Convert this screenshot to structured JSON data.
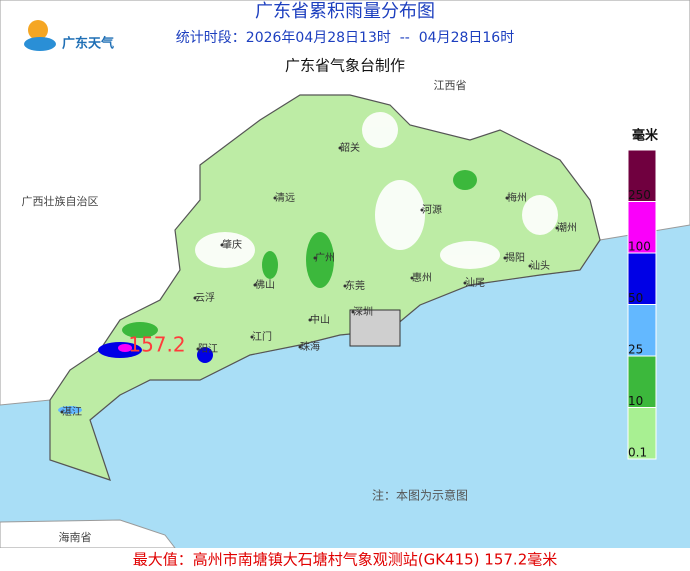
{
  "header": {
    "title": "广东省累积雨量分布图",
    "logo": "广东天气",
    "period": "统计时段：2026年04月28日13时  --  04月28日16时",
    "producer": "广东省气象台制作"
  },
  "legend": {
    "unit": "毫米",
    "items": [
      {
        "label": "250",
        "color": "#70003f"
      },
      {
        "label": "100",
        "color": "#fa00fa"
      },
      {
        "label": "50",
        "color": "#0000e6"
      },
      {
        "label": "25",
        "color": "#63b8ff"
      },
      {
        "label": "10",
        "color": "#3cb83c"
      },
      {
        "label": "0.1",
        "color": "#a8f092"
      }
    ]
  },
  "regions": [
    "江西省",
    "广西壮族自治区",
    "海南省"
  ],
  "cities": [
    "韶关",
    "清远",
    "河源",
    "梅州",
    "潮州",
    "揭阳",
    "汕头",
    "汕尾",
    "惠州",
    "广州",
    "佛山",
    "肇庆",
    "云浮",
    "东莞",
    "深圳",
    "中山",
    "珠海",
    "江门",
    "阳江",
    "湛江"
  ],
  "max_label": "157.2",
  "note": "注：本图为示意图",
  "footer": "最大值：高州市南塘镇大石塘村气象观测站(GK415) 157.2毫米"
}
